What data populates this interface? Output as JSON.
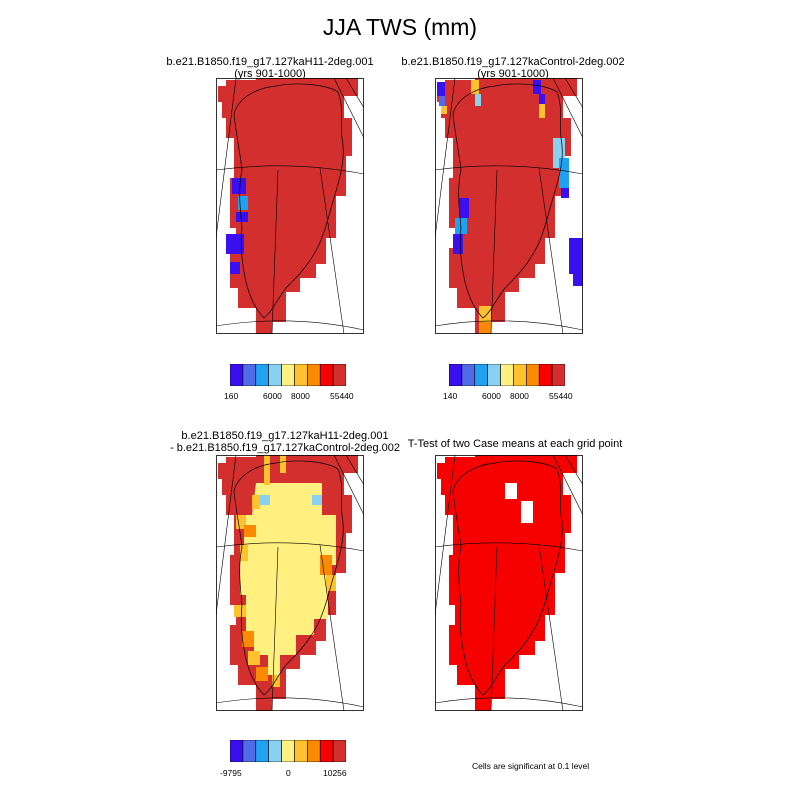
{
  "title": "JJA TWS (mm)",
  "panels": [
    {
      "id": "case1",
      "title_line1": "b.e21.B1850.f19_g17.127kaH11-2deg.001",
      "title_line2": "(yrs 901-1000)",
      "colorbar": {
        "colors": [
          "#3a10f0",
          "#4f6be8",
          "#1fa3f0",
          "#8ad0f0",
          "#fff080",
          "#fdc22c",
          "#fb8a00",
          "#f70000",
          "#d32f2f"
        ],
        "labels": [
          "160",
          "6000",
          "8000",
          "55440"
        ]
      }
    },
    {
      "id": "case2",
      "title_line1": "b.e21.B1850.f19_g17.127kaControl-2deg.002",
      "title_line2": "(yrs 901-1000)",
      "colorbar": {
        "colors": [
          "#3a10f0",
          "#4f6be8",
          "#1fa3f0",
          "#8ad0f0",
          "#fff080",
          "#fdc22c",
          "#fb8a00",
          "#f70000",
          "#d32f2f"
        ],
        "labels": [
          "140",
          "6000",
          "8000",
          "55440"
        ]
      }
    },
    {
      "id": "difference",
      "title_line1": "b.e21.B1850.f19_g17.127kaH11-2deg.001",
      "title_line2": "- b.e21.B1850.f19_g17.127kaControl-2deg.002",
      "colorbar": {
        "colors": [
          "#3a10f0",
          "#4f6be8",
          "#1fa3f0",
          "#8ad0f0",
          "#fff080",
          "#fdc22c",
          "#fb8a00",
          "#f70000",
          "#d32f2f"
        ],
        "labels": [
          "-9795",
          "0",
          "10256"
        ]
      }
    },
    {
      "id": "ttest",
      "title_line1": "T-Test of two Case means at each grid point",
      "footnote": "Cells are significant at 0.1 level"
    }
  ],
  "colors": {
    "land_dark_red": "#d32f2f",
    "significant_red": "#f70000",
    "pale_yellow": "#fff080",
    "orange": "#fb8a00",
    "light_orange": "#fdc22c",
    "light_blue": "#8ad0f0",
    "blue": "#3a10f0"
  }
}
